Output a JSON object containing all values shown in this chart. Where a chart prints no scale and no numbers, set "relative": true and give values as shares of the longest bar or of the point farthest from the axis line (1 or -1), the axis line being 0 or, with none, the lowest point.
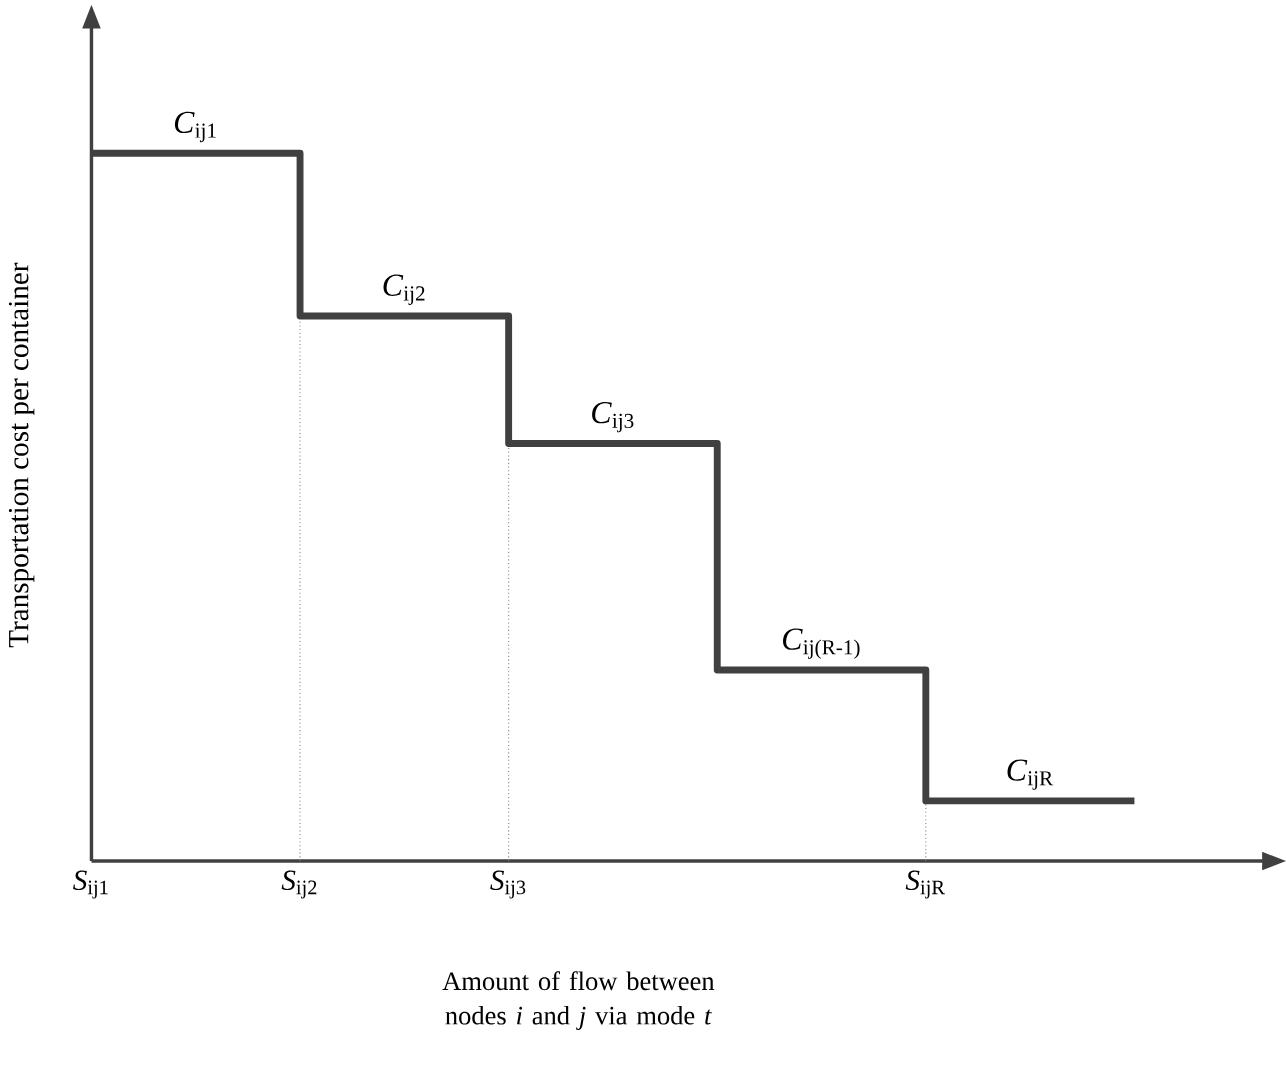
{
  "chart_data": {
    "type": "step",
    "relative": true,
    "color": "#404040",
    "xlabel": "Amount of flow between nodes *i* and *j* via mode *t*",
    "ylabel": "Transportation cost per container",
    "categories": [
      "*S*$_{ij1}$",
      "*S*$_{ij2}$",
      "*S*$_{ij3}$",
      null,
      "*S*$_{ijR}$",
      null
    ],
    "values": [
      1,
      0.77,
      0.59,
      0.27,
      0.085,
      0.085
    ],
    "ref_lines": [
      {
        "axis": "x",
        "value": "*S*$_{ij2}$",
        "color": "#808080",
        "line_style": "dotted"
      },
      {
        "axis": "x",
        "value": "*S*$_{ij3}$",
        "color": "#808080",
        "line_style": "dotted"
      },
      {
        "axis": "x",
        "value": "*S*$_{ijR}$",
        "color": "#808080",
        "line_style": "dotted"
      }
    ],
    "annotations": [
      {
        "text": "*C*$_{ij1}$",
        "x": "*S*$_{ij1}$",
        "y": 1
      },
      {
        "text": "*C*$_{ij2}$",
        "x": "*S*$_{ij2}$",
        "y": 0.77
      },
      {
        "text": "*C*$_{ij3}$",
        "x": "*S*$_{ij3}$",
        "y": 0.59
      },
      {
        "text": "*C*$_{ij(R-1)}$",
        "y": 0.27
      },
      {
        "text": "*C*$_{ijR}$",
        "x": "*S*$_{ijR}$",
        "y": 0.085
      }
    ]
  }
}
